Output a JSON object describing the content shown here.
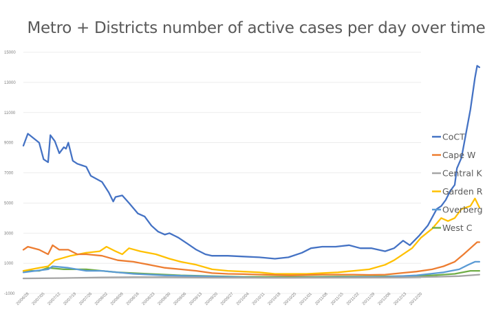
{
  "chart_data": {
    "type": "line",
    "title": "Metro + Districts number of active cases per day over time",
    "xlabel": "",
    "ylabel": "",
    "ylim": [
      -1000,
      15000
    ],
    "yticks": [
      15000,
      13000,
      11000,
      9000,
      7000,
      5000,
      3000,
      1000,
      -1000
    ],
    "x_tick_labels": [
      "20/06/28",
      "20/07/05",
      "20/07/12",
      "20/07/19",
      "20/07/26",
      "20/08/02",
      "20/08/09",
      "20/08/16",
      "20/08/23",
      "20/08/30",
      "20/09/06",
      "20/09/13",
      "20/09/20",
      "20/09/27",
      "20/10/04",
      "20/10/11",
      "20/10/18",
      "20/10/25",
      "20/11/01",
      "20/11/08",
      "20/11/15",
      "20/11/22",
      "20/11/29",
      "20/12/06",
      "20/12/13",
      "20/12/20"
    ],
    "x_start": "2020-06-28",
    "x_end": "2020-12-13",
    "legend_position": "right",
    "grid": true,
    "series": [
      {
        "name": "CoCT",
        "color": "#4472C4",
        "points": [
          [
            "2020-06-28",
            8800
          ],
          [
            "2020-06-30",
            9600
          ],
          [
            "2020-07-05",
            9000
          ],
          [
            "2020-07-07",
            7900
          ],
          [
            "2020-07-09",
            7700
          ],
          [
            "2020-07-10",
            9500
          ],
          [
            "2020-07-12",
            9100
          ],
          [
            "2020-07-14",
            8300
          ],
          [
            "2020-07-16",
            8700
          ],
          [
            "2020-07-17",
            8600
          ],
          [
            "2020-07-18",
            9000
          ],
          [
            "2020-07-20",
            7800
          ],
          [
            "2020-07-22",
            7600
          ],
          [
            "2020-07-24",
            7500
          ],
          [
            "2020-07-26",
            7400
          ],
          [
            "2020-07-28",
            6800
          ],
          [
            "2020-08-02",
            6400
          ],
          [
            "2020-08-05",
            5700
          ],
          [
            "2020-08-07",
            5100
          ],
          [
            "2020-08-08",
            5400
          ],
          [
            "2020-08-11",
            5500
          ],
          [
            "2020-08-14",
            5000
          ],
          [
            "2020-08-18",
            4300
          ],
          [
            "2020-08-21",
            4100
          ],
          [
            "2020-08-24",
            3500
          ],
          [
            "2020-08-27",
            3100
          ],
          [
            "2020-08-30",
            2900
          ],
          [
            "2020-09-01",
            3000
          ],
          [
            "2020-09-05",
            2700
          ],
          [
            "2020-09-09",
            2300
          ],
          [
            "2020-09-13",
            1900
          ],
          [
            "2020-09-17",
            1600
          ],
          [
            "2020-09-20",
            1500
          ],
          [
            "2020-09-27",
            1500
          ],
          [
            "2020-10-04",
            1450
          ],
          [
            "2020-10-11",
            1400
          ],
          [
            "2020-10-18",
            1300
          ],
          [
            "2020-10-24",
            1400
          ],
          [
            "2020-10-30",
            1700
          ],
          [
            "2020-11-03",
            2000
          ],
          [
            "2020-11-08",
            2100
          ],
          [
            "2020-11-14",
            2100
          ],
          [
            "2020-11-20",
            2200
          ],
          [
            "2020-11-25",
            2000
          ],
          [
            "2020-11-30",
            2000
          ],
          [
            "2020-12-06",
            1800
          ],
          [
            "2020-12-10",
            2000
          ],
          [
            "2020-12-14",
            2500
          ],
          [
            "2020-12-17",
            2200
          ],
          [
            "2020-12-21",
            2800
          ],
          [
            "2020-12-25",
            3500
          ],
          [
            "2020-12-29",
            4600
          ],
          [
            "2020-12-31",
            4800
          ],
          [
            "2021-01-02",
            5200
          ],
          [
            "2021-01-04",
            5800
          ],
          [
            "2021-01-06",
            6200
          ],
          [
            "2021-01-07",
            7300
          ],
          [
            "2021-01-09",
            8000
          ],
          [
            "2021-01-11",
            9600
          ],
          [
            "2021-01-13",
            11200
          ],
          [
            "2021-01-15",
            13300
          ],
          [
            "2021-01-16",
            14100
          ],
          [
            "2021-01-17",
            14000
          ]
        ]
      },
      {
        "name": "Cape W",
        "color": "#ED7D31",
        "points": [
          [
            "2020-06-28",
            1900
          ],
          [
            "2020-06-30",
            2100
          ],
          [
            "2020-07-05",
            1900
          ],
          [
            "2020-07-09",
            1600
          ],
          [
            "2020-07-11",
            2200
          ],
          [
            "2020-07-14",
            1900
          ],
          [
            "2020-07-18",
            1900
          ],
          [
            "2020-07-22",
            1600
          ],
          [
            "2020-07-26",
            1600
          ],
          [
            "2020-08-02",
            1500
          ],
          [
            "2020-08-09",
            1200
          ],
          [
            "2020-08-16",
            1100
          ],
          [
            "2020-08-23",
            900
          ],
          [
            "2020-08-30",
            700
          ],
          [
            "2020-09-06",
            600
          ],
          [
            "2020-09-13",
            500
          ],
          [
            "2020-09-20",
            350
          ],
          [
            "2020-09-27",
            300
          ],
          [
            "2020-10-04",
            280
          ],
          [
            "2020-10-11",
            250
          ],
          [
            "2020-10-18",
            220
          ],
          [
            "2020-10-25",
            200
          ],
          [
            "2020-11-01",
            220
          ],
          [
            "2020-11-08",
            250
          ],
          [
            "2020-11-15",
            250
          ],
          [
            "2020-11-22",
            250
          ],
          [
            "2020-11-29",
            230
          ],
          [
            "2020-12-06",
            250
          ],
          [
            "2020-12-13",
            350
          ],
          [
            "2020-12-20",
            450
          ],
          [
            "2020-12-27",
            600
          ],
          [
            "2021-01-01",
            800
          ],
          [
            "2021-01-06",
            1100
          ],
          [
            "2021-01-10",
            1600
          ],
          [
            "2021-01-13",
            2000
          ],
          [
            "2021-01-16",
            2400
          ],
          [
            "2021-01-17",
            2400
          ]
        ]
      },
      {
        "name": "Central K",
        "color": "#A5A5A5",
        "points": [
          [
            "2020-06-28",
            0
          ],
          [
            "2020-07-15",
            20
          ],
          [
            "2020-08-02",
            60
          ],
          [
            "2020-08-16",
            80
          ],
          [
            "2020-08-30",
            80
          ],
          [
            "2020-09-20",
            50
          ],
          [
            "2020-10-18",
            40
          ],
          [
            "2020-11-15",
            50
          ],
          [
            "2020-12-13",
            60
          ],
          [
            "2020-12-27",
            100
          ],
          [
            "2021-01-08",
            150
          ],
          [
            "2021-01-17",
            250
          ]
        ]
      },
      {
        "name": "Garden R",
        "color": "#FFC000",
        "points": [
          [
            "2020-06-28",
            500
          ],
          [
            "2020-07-05",
            700
          ],
          [
            "2020-07-09",
            800
          ],
          [
            "2020-07-12",
            1200
          ],
          [
            "2020-07-19",
            1500
          ],
          [
            "2020-07-26",
            1700
          ],
          [
            "2020-08-01",
            1800
          ],
          [
            "2020-08-04",
            2100
          ],
          [
            "2020-08-08",
            1800
          ],
          [
            "2020-08-11",
            1600
          ],
          [
            "2020-08-14",
            2000
          ],
          [
            "2020-08-19",
            1800
          ],
          [
            "2020-08-26",
            1600
          ],
          [
            "2020-09-01",
            1300
          ],
          [
            "2020-09-06",
            1100
          ],
          [
            "2020-09-13",
            900
          ],
          [
            "2020-09-20",
            600
          ],
          [
            "2020-09-27",
            500
          ],
          [
            "2020-10-04",
            450
          ],
          [
            "2020-10-11",
            400
          ],
          [
            "2020-10-18",
            300
          ],
          [
            "2020-10-25",
            300
          ],
          [
            "2020-11-01",
            300
          ],
          [
            "2020-11-08",
            350
          ],
          [
            "2020-11-15",
            400
          ],
          [
            "2020-11-22",
            500
          ],
          [
            "2020-11-29",
            600
          ],
          [
            "2020-12-06",
            900
          ],
          [
            "2020-12-10",
            1200
          ],
          [
            "2020-12-13",
            1500
          ],
          [
            "2020-12-18",
            2000
          ],
          [
            "2020-12-22",
            2700
          ],
          [
            "2020-12-27",
            3300
          ],
          [
            "2020-12-31",
            4000
          ],
          [
            "2021-01-03",
            3800
          ],
          [
            "2021-01-06",
            4000
          ],
          [
            "2021-01-09",
            4600
          ],
          [
            "2021-01-13",
            4800
          ],
          [
            "2021-01-15",
            5300
          ],
          [
            "2021-01-17",
            4700
          ]
        ]
      },
      {
        "name": "Overberg",
        "color": "#5B9BD5",
        "points": [
          [
            "2020-06-28",
            400
          ],
          [
            "2020-07-09",
            600
          ],
          [
            "2020-07-11",
            800
          ],
          [
            "2020-07-18",
            700
          ],
          [
            "2020-07-26",
            500
          ],
          [
            "2020-08-02",
            500
          ],
          [
            "2020-08-16",
            300
          ],
          [
            "2020-08-30",
            200
          ],
          [
            "2020-09-13",
            150
          ],
          [
            "2020-09-27",
            100
          ],
          [
            "2020-10-11",
            50
          ],
          [
            "2020-10-25",
            50
          ],
          [
            "2020-11-08",
            60
          ],
          [
            "2020-11-22",
            80
          ],
          [
            "2020-12-06",
            100
          ],
          [
            "2020-12-20",
            200
          ],
          [
            "2021-01-01",
            400
          ],
          [
            "2021-01-08",
            600
          ],
          [
            "2021-01-12",
            900
          ],
          [
            "2021-01-15",
            1100
          ],
          [
            "2021-01-17",
            1100
          ]
        ]
      },
      {
        "name": "West C",
        "color": "#70AD47",
        "points": [
          [
            "2020-06-28",
            500
          ],
          [
            "2020-07-05",
            500
          ],
          [
            "2020-07-09",
            700
          ],
          [
            "2020-07-16",
            600
          ],
          [
            "2020-07-26",
            600
          ],
          [
            "2020-08-02",
            500
          ],
          [
            "2020-08-09",
            400
          ],
          [
            "2020-08-23",
            300
          ],
          [
            "2020-09-06",
            200
          ],
          [
            "2020-09-20",
            150
          ],
          [
            "2020-10-04",
            100
          ],
          [
            "2020-10-18",
            100
          ],
          [
            "2020-11-01",
            100
          ],
          [
            "2020-11-15",
            120
          ],
          [
            "2020-11-29",
            120
          ],
          [
            "2020-12-13",
            150
          ],
          [
            "2020-12-27",
            200
          ],
          [
            "2021-01-06",
            300
          ],
          [
            "2021-01-13",
            500
          ],
          [
            "2021-01-17",
            500
          ]
        ]
      }
    ]
  }
}
